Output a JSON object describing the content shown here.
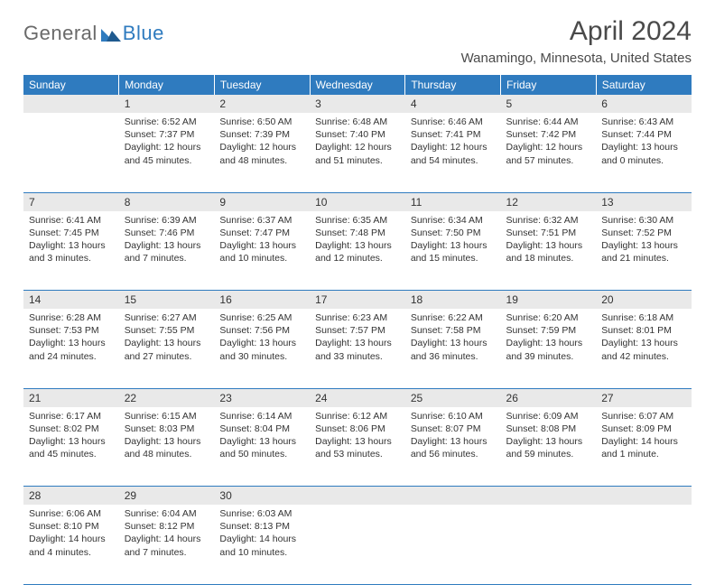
{
  "logo": {
    "part1": "General",
    "part2": "Blue"
  },
  "title": "April 2024",
  "subtitle": "Wanamingo, Minnesota, United States",
  "colors": {
    "header_bg": "#2f7bbf",
    "header_text": "#ffffff",
    "daynum_bg": "#e9e9e9",
    "rule": "#2f7bbf",
    "text": "#333333",
    "logo_gray": "#6a6a6a",
    "logo_blue": "#2f7bbf"
  },
  "daysOfWeek": [
    "Sunday",
    "Monday",
    "Tuesday",
    "Wednesday",
    "Thursday",
    "Friday",
    "Saturday"
  ],
  "weeks": [
    [
      {
        "num": "",
        "sunrise": "",
        "sunset": "",
        "daylight": ""
      },
      {
        "num": "1",
        "sunrise": "Sunrise: 6:52 AM",
        "sunset": "Sunset: 7:37 PM",
        "daylight": "Daylight: 12 hours and 45 minutes."
      },
      {
        "num": "2",
        "sunrise": "Sunrise: 6:50 AM",
        "sunset": "Sunset: 7:39 PM",
        "daylight": "Daylight: 12 hours and 48 minutes."
      },
      {
        "num": "3",
        "sunrise": "Sunrise: 6:48 AM",
        "sunset": "Sunset: 7:40 PM",
        "daylight": "Daylight: 12 hours and 51 minutes."
      },
      {
        "num": "4",
        "sunrise": "Sunrise: 6:46 AM",
        "sunset": "Sunset: 7:41 PM",
        "daylight": "Daylight: 12 hours and 54 minutes."
      },
      {
        "num": "5",
        "sunrise": "Sunrise: 6:44 AM",
        "sunset": "Sunset: 7:42 PM",
        "daylight": "Daylight: 12 hours and 57 minutes."
      },
      {
        "num": "6",
        "sunrise": "Sunrise: 6:43 AM",
        "sunset": "Sunset: 7:44 PM",
        "daylight": "Daylight: 13 hours and 0 minutes."
      }
    ],
    [
      {
        "num": "7",
        "sunrise": "Sunrise: 6:41 AM",
        "sunset": "Sunset: 7:45 PM",
        "daylight": "Daylight: 13 hours and 3 minutes."
      },
      {
        "num": "8",
        "sunrise": "Sunrise: 6:39 AM",
        "sunset": "Sunset: 7:46 PM",
        "daylight": "Daylight: 13 hours and 7 minutes."
      },
      {
        "num": "9",
        "sunrise": "Sunrise: 6:37 AM",
        "sunset": "Sunset: 7:47 PM",
        "daylight": "Daylight: 13 hours and 10 minutes."
      },
      {
        "num": "10",
        "sunrise": "Sunrise: 6:35 AM",
        "sunset": "Sunset: 7:48 PM",
        "daylight": "Daylight: 13 hours and 12 minutes."
      },
      {
        "num": "11",
        "sunrise": "Sunrise: 6:34 AM",
        "sunset": "Sunset: 7:50 PM",
        "daylight": "Daylight: 13 hours and 15 minutes."
      },
      {
        "num": "12",
        "sunrise": "Sunrise: 6:32 AM",
        "sunset": "Sunset: 7:51 PM",
        "daylight": "Daylight: 13 hours and 18 minutes."
      },
      {
        "num": "13",
        "sunrise": "Sunrise: 6:30 AM",
        "sunset": "Sunset: 7:52 PM",
        "daylight": "Daylight: 13 hours and 21 minutes."
      }
    ],
    [
      {
        "num": "14",
        "sunrise": "Sunrise: 6:28 AM",
        "sunset": "Sunset: 7:53 PM",
        "daylight": "Daylight: 13 hours and 24 minutes."
      },
      {
        "num": "15",
        "sunrise": "Sunrise: 6:27 AM",
        "sunset": "Sunset: 7:55 PM",
        "daylight": "Daylight: 13 hours and 27 minutes."
      },
      {
        "num": "16",
        "sunrise": "Sunrise: 6:25 AM",
        "sunset": "Sunset: 7:56 PM",
        "daylight": "Daylight: 13 hours and 30 minutes."
      },
      {
        "num": "17",
        "sunrise": "Sunrise: 6:23 AM",
        "sunset": "Sunset: 7:57 PM",
        "daylight": "Daylight: 13 hours and 33 minutes."
      },
      {
        "num": "18",
        "sunrise": "Sunrise: 6:22 AM",
        "sunset": "Sunset: 7:58 PM",
        "daylight": "Daylight: 13 hours and 36 minutes."
      },
      {
        "num": "19",
        "sunrise": "Sunrise: 6:20 AM",
        "sunset": "Sunset: 7:59 PM",
        "daylight": "Daylight: 13 hours and 39 minutes."
      },
      {
        "num": "20",
        "sunrise": "Sunrise: 6:18 AM",
        "sunset": "Sunset: 8:01 PM",
        "daylight": "Daylight: 13 hours and 42 minutes."
      }
    ],
    [
      {
        "num": "21",
        "sunrise": "Sunrise: 6:17 AM",
        "sunset": "Sunset: 8:02 PM",
        "daylight": "Daylight: 13 hours and 45 minutes."
      },
      {
        "num": "22",
        "sunrise": "Sunrise: 6:15 AM",
        "sunset": "Sunset: 8:03 PM",
        "daylight": "Daylight: 13 hours and 48 minutes."
      },
      {
        "num": "23",
        "sunrise": "Sunrise: 6:14 AM",
        "sunset": "Sunset: 8:04 PM",
        "daylight": "Daylight: 13 hours and 50 minutes."
      },
      {
        "num": "24",
        "sunrise": "Sunrise: 6:12 AM",
        "sunset": "Sunset: 8:06 PM",
        "daylight": "Daylight: 13 hours and 53 minutes."
      },
      {
        "num": "25",
        "sunrise": "Sunrise: 6:10 AM",
        "sunset": "Sunset: 8:07 PM",
        "daylight": "Daylight: 13 hours and 56 minutes."
      },
      {
        "num": "26",
        "sunrise": "Sunrise: 6:09 AM",
        "sunset": "Sunset: 8:08 PM",
        "daylight": "Daylight: 13 hours and 59 minutes."
      },
      {
        "num": "27",
        "sunrise": "Sunrise: 6:07 AM",
        "sunset": "Sunset: 8:09 PM",
        "daylight": "Daylight: 14 hours and 1 minute."
      }
    ],
    [
      {
        "num": "28",
        "sunrise": "Sunrise: 6:06 AM",
        "sunset": "Sunset: 8:10 PM",
        "daylight": "Daylight: 14 hours and 4 minutes."
      },
      {
        "num": "29",
        "sunrise": "Sunrise: 6:04 AM",
        "sunset": "Sunset: 8:12 PM",
        "daylight": "Daylight: 14 hours and 7 minutes."
      },
      {
        "num": "30",
        "sunrise": "Sunrise: 6:03 AM",
        "sunset": "Sunset: 8:13 PM",
        "daylight": "Daylight: 14 hours and 10 minutes."
      },
      {
        "num": "",
        "sunrise": "",
        "sunset": "",
        "daylight": ""
      },
      {
        "num": "",
        "sunrise": "",
        "sunset": "",
        "daylight": ""
      },
      {
        "num": "",
        "sunrise": "",
        "sunset": "",
        "daylight": ""
      },
      {
        "num": "",
        "sunrise": "",
        "sunset": "",
        "daylight": ""
      }
    ]
  ]
}
